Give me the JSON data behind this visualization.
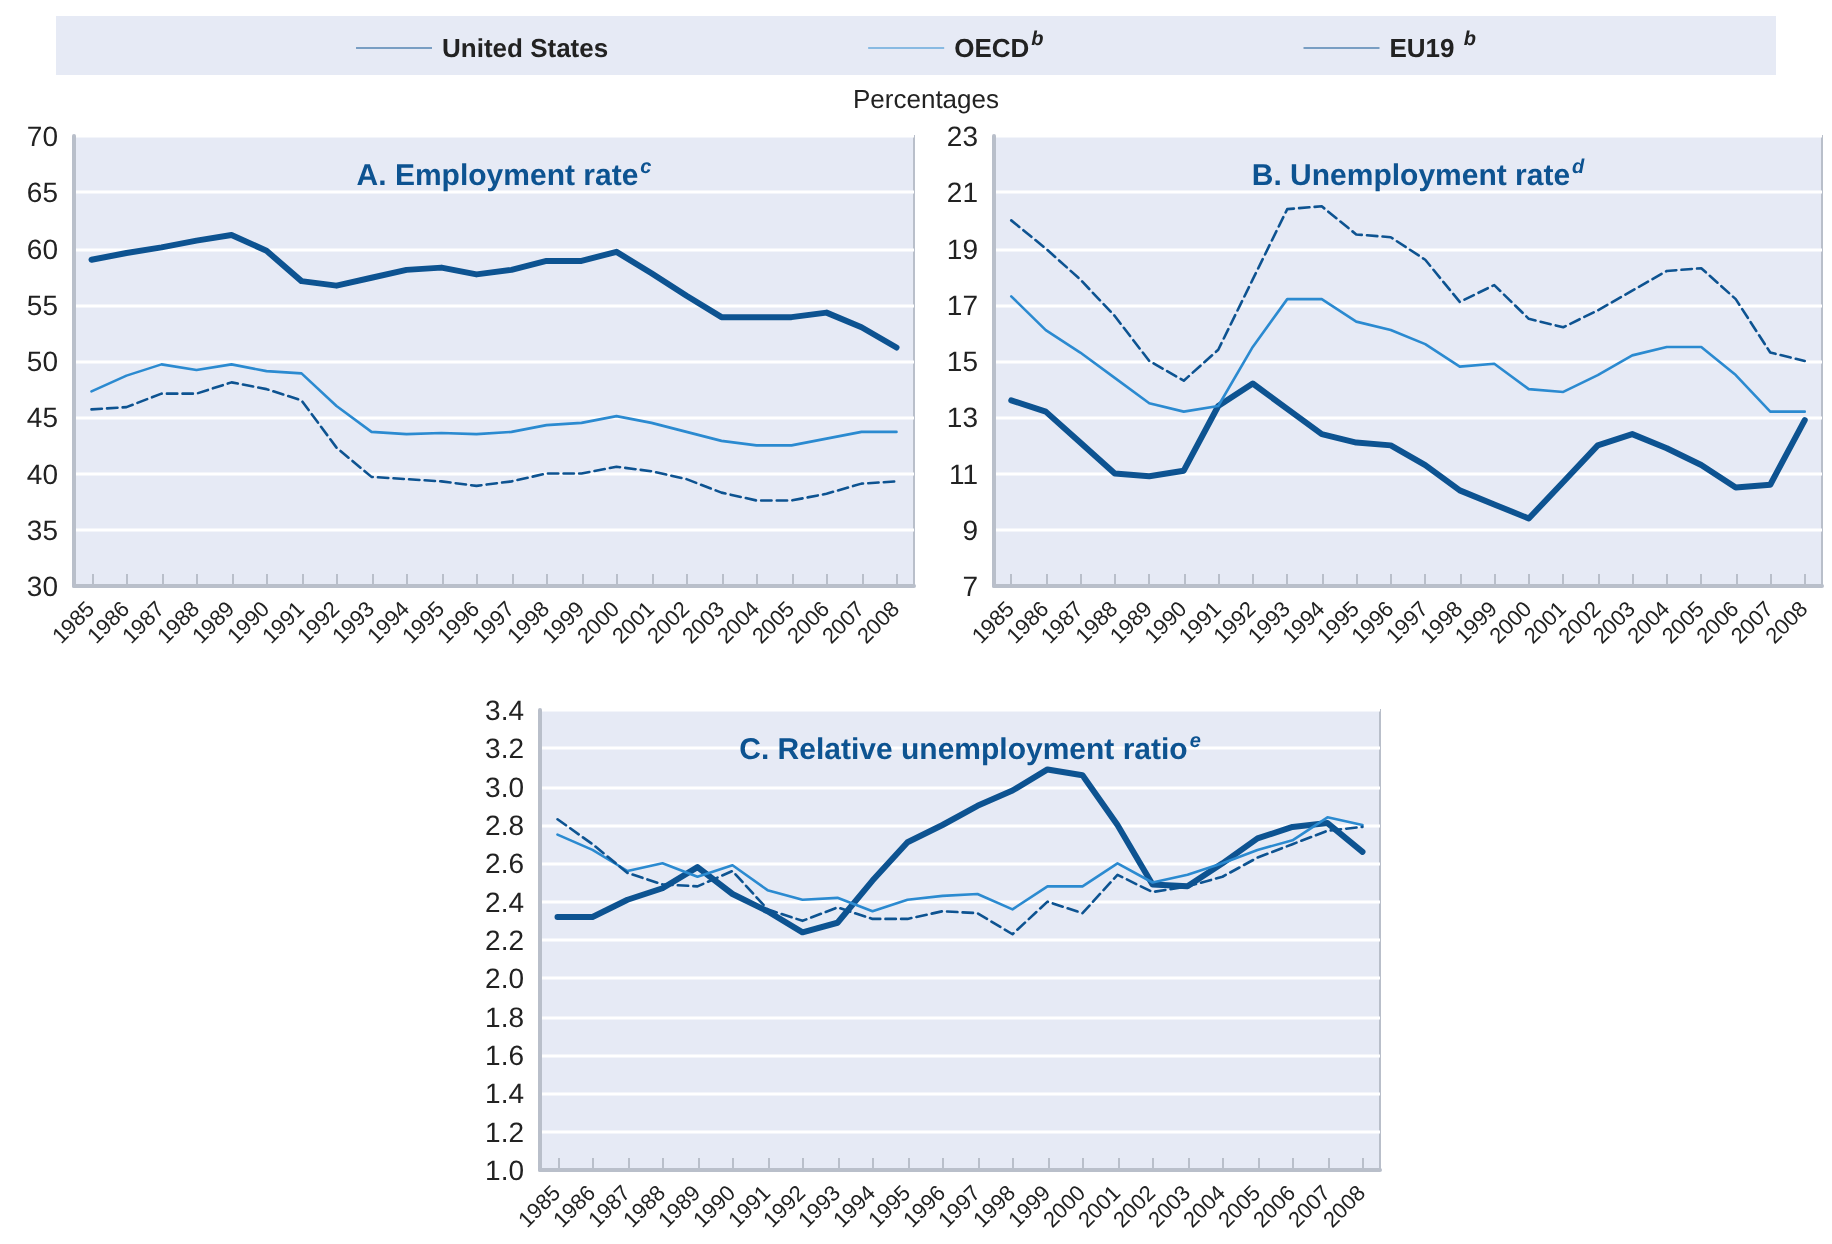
{
  "chart_data": [
    {
      "type": "line",
      "title": "A. Employment rate$^{c}$",
      "subtitle": "Percentages",
      "legend": "top",
      "grid": "y",
      "categories": [
        "1985",
        "1986",
        "1987",
        "1988",
        "1989",
        "1990",
        "1991",
        "1992",
        "1993",
        "1994",
        "1995",
        "1996",
        "1997",
        "1998",
        "1999",
        "2000",
        "2001",
        "2002",
        "2003",
        "2004",
        "2005",
        "2006",
        "2007",
        "2008"
      ],
      "ylim": [
        30,
        70
      ],
      "yticks": [
        30,
        35,
        40,
        45,
        50,
        55,
        60,
        65,
        70
      ],
      "series": [
        {
          "name": "United States",
          "color": "#0d5391",
          "line_style": "solid",
          "values": [
            59,
            59.6,
            60.1,
            60.7,
            61.2,
            59.8,
            57.1,
            56.7,
            57.4,
            58.1,
            58.3,
            57.7,
            58.1,
            58.9,
            58.9,
            59.7,
            57.8,
            55.8,
            53.9,
            53.9,
            53.9,
            54.3,
            53,
            51.2
          ]
        },
        {
          "name": "OECD$^{b}$",
          "color": "#2b8ad0",
          "line_style": "solid",
          "values": [
            47.3,
            48.7,
            49.7,
            49.2,
            49.7,
            49.1,
            48.9,
            46,
            43.7,
            43.5,
            43.6,
            43.5,
            43.7,
            44.3,
            44.5,
            45.1,
            44.5,
            43.7,
            42.9,
            42.5,
            42.5,
            43.1,
            43.7,
            43.7
          ]
        },
        {
          "name": "EU19 $^{b}$",
          "color": "#0d5391",
          "line_style": "dashed",
          "values": [
            45.7,
            45.9,
            47.1,
            47.1,
            48.1,
            47.5,
            46.5,
            42.3,
            39.7,
            39.5,
            39.3,
            38.9,
            39.3,
            40,
            40,
            40.6,
            40.2,
            39.5,
            38.3,
            37.6,
            37.6,
            38.2,
            39.1,
            39.3
          ]
        }
      ]
    },
    {
      "type": "line",
      "title": "B. Unemployment rate$^{d}$",
      "grid": "y",
      "categories": [
        "1985",
        "1986",
        "1987",
        "1988",
        "1989",
        "1990",
        "1991",
        "1992",
        "1993",
        "1994",
        "1995",
        "1996",
        "1997",
        "1998",
        "1999",
        "2000",
        "2001",
        "2002",
        "2003",
        "2004",
        "2005",
        "2006",
        "2007",
        "2008"
      ],
      "ylim": [
        7,
        23
      ],
      "yticks": [
        7,
        9,
        11,
        13,
        15,
        17,
        19,
        21,
        23
      ],
      "series": [
        {
          "color": "#0d5391",
          "line_style": "solid",
          "values": [
            13.6,
            13.2,
            12.1,
            11,
            10.9,
            11.1,
            13.4,
            14.2,
            13.3,
            12.4,
            12.1,
            12,
            11.3,
            10.4,
            9.9,
            9.4,
            10.7,
            12,
            12.4,
            11.9,
            11.3,
            10.5,
            10.6,
            12.9
          ]
        },
        {
          "color": "#2b8ad0",
          "line_style": "solid",
          "values": [
            17.3,
            16.1,
            15.3,
            14.4,
            13.5,
            13.2,
            13.4,
            15.5,
            17.2,
            17.2,
            16.4,
            16.1,
            15.6,
            14.8,
            14.9,
            14,
            13.9,
            14.5,
            15.2,
            15.5,
            15.5,
            14.5,
            13.2,
            13.2
          ]
        },
        {
          "color": "#0d5391",
          "line_style": "dashed",
          "values": [
            20,
            19,
            17.9,
            16.6,
            15,
            14.3,
            15.4,
            17.9,
            20.4,
            20.5,
            19.5,
            19.4,
            18.6,
            17.1,
            17.7,
            16.5,
            16.2,
            16.8,
            17.5,
            18.2,
            18.3,
            17.2,
            15.3,
            15
          ]
        }
      ]
    },
    {
      "type": "line",
      "title": "C. Relative unemployment ratio$^{e}$",
      "grid": "y",
      "categories": [
        "1985",
        "1986",
        "1987",
        "1988",
        "1989",
        "1990",
        "1991",
        "1992",
        "1993",
        "1994",
        "1995",
        "1996",
        "1997",
        "1998",
        "1999",
        "2000",
        "2001",
        "2002",
        "2003",
        "2004",
        "2005",
        "2006",
        "2007",
        "2008"
      ],
      "ylim": [
        1,
        3.4
      ],
      "yticks": [
        {
          "value": 1,
          "label": "1.0"
        },
        1.2,
        1.4,
        1.6,
        1.8,
        {
          "value": 2,
          "label": "2.0"
        },
        2.2,
        2.4,
        2.6,
        2.8,
        {
          "value": 3,
          "label": "3.0"
        },
        3.2,
        3.4
      ],
      "series": [
        {
          "color": "#0d5391",
          "line_style": "solid",
          "values": [
            2.32,
            2.32,
            2.41,
            2.47,
            2.58,
            2.44,
            2.35,
            2.24,
            2.29,
            2.51,
            2.71,
            2.8,
            2.9,
            2.98,
            3.09,
            3.06,
            2.8,
            2.49,
            2.48,
            2.6,
            2.73,
            2.79,
            2.81,
            2.66
          ]
        },
        {
          "color": "#2b8ad0",
          "line_style": "solid",
          "values": [
            2.75,
            2.67,
            2.56,
            2.6,
            2.53,
            2.59,
            2.46,
            2.41,
            2.42,
            2.35,
            2.41,
            2.43,
            2.44,
            2.36,
            2.48,
            2.48,
            2.6,
            2.5,
            2.54,
            2.6,
            2.67,
            2.72,
            2.84,
            2.8
          ]
        },
        {
          "color": "#0d5391",
          "line_style": "dashed",
          "values": [
            2.83,
            2.7,
            2.55,
            2.49,
            2.48,
            2.56,
            2.36,
            2.3,
            2.37,
            2.31,
            2.31,
            2.35,
            2.34,
            2.23,
            2.4,
            2.34,
            2.54,
            2.45,
            2.48,
            2.53,
            2.63,
            2.7,
            2.77,
            2.79
          ]
        }
      ]
    }
  ]
}
